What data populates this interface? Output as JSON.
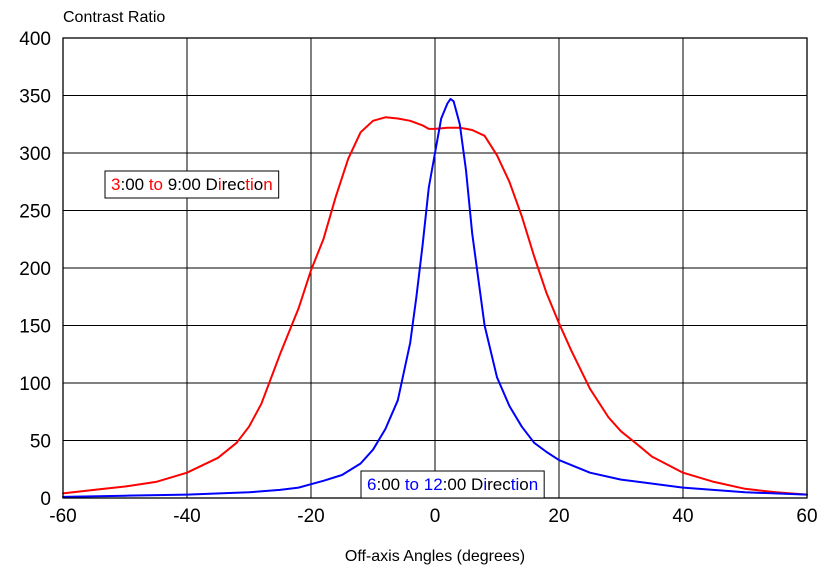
{
  "chart_data": {
    "type": "line",
    "title": "",
    "ylabel": "Contrast Ratio",
    "xlabel": "Off-axis Angles (degrees)",
    "xlim": [
      -60,
      60
    ],
    "ylim": [
      0,
      400
    ],
    "xticks": [
      -60,
      -40,
      -20,
      0,
      20,
      40,
      60
    ],
    "yticks": [
      0,
      50,
      100,
      150,
      200,
      250,
      300,
      350,
      400
    ],
    "grid": true,
    "series": [
      {
        "name": "3:00 to 9:00 Direction",
        "color": "#ff0000",
        "x": [
          -60,
          -55,
          -50,
          -45,
          -40,
          -35,
          -32,
          -30,
          -28,
          -25,
          -22,
          -20,
          -18,
          -16,
          -14,
          -12,
          -10,
          -8,
          -6,
          -4,
          -2,
          -1,
          0,
          2,
          4,
          6,
          8,
          10,
          12,
          14,
          16,
          18,
          20,
          22,
          25,
          28,
          30,
          33,
          35,
          40,
          45,
          50,
          55,
          60
        ],
        "y": [
          4,
          7,
          10,
          14,
          22,
          35,
          48,
          62,
          82,
          125,
          165,
          198,
          225,
          262,
          295,
          318,
          328,
          331,
          330,
          328,
          324,
          321,
          321,
          322,
          322,
          320,
          315,
          298,
          275,
          245,
          210,
          178,
          152,
          128,
          95,
          70,
          58,
          45,
          36,
          22,
          14,
          8,
          5,
          3
        ]
      },
      {
        "name": "6:00 to 12:00 Direction",
        "color": "#0000ff",
        "x": [
          -60,
          -50,
          -40,
          -30,
          -25,
          -22,
          -20,
          -18,
          -15,
          -12,
          -10,
          -8,
          -6,
          -4,
          -3,
          -2,
          -1,
          0,
          1,
          2,
          2.5,
          3,
          4,
          5,
          6,
          8,
          10,
          12,
          14,
          16,
          18,
          20,
          25,
          30,
          40,
          50,
          60
        ],
        "y": [
          1,
          2,
          3,
          5,
          7,
          9,
          12,
          15,
          20,
          30,
          42,
          60,
          85,
          135,
          175,
          220,
          270,
          300,
          330,
          343,
          347,
          345,
          325,
          285,
          230,
          150,
          105,
          80,
          62,
          48,
          40,
          33,
          22,
          16,
          9,
          5,
          3
        ]
      }
    ],
    "annotations": [
      {
        "series": 0,
        "border_color": "#000000",
        "runs": [
          {
            "text": "3",
            "color": "#ff0000"
          },
          {
            "text": ":00 ",
            "color": "#000000"
          },
          {
            "text": "to",
            "color": "#ff0000"
          },
          {
            "text": " 9:00 D",
            "color": "#000000"
          },
          {
            "text": "i",
            "color": "#ff0000"
          },
          {
            "text": "rec",
            "color": "#000000"
          },
          {
            "text": "t",
            "color": "#ff0000"
          },
          {
            "text": "i",
            "color": "#ff0000"
          },
          {
            "text": "o",
            "color": "#000000"
          },
          {
            "text": "n",
            "color": "#ff0000"
          }
        ]
      },
      {
        "series": 1,
        "border_color": "#000000",
        "runs": [
          {
            "text": "6",
            "color": "#0000ff"
          },
          {
            "text": ":00 ",
            "color": "#000000"
          },
          {
            "text": "to",
            "color": "#0000ff"
          },
          {
            "text": " ",
            "color": "#000000"
          },
          {
            "text": "12",
            "color": "#0000ff"
          },
          {
            "text": ":00 D",
            "color": "#000000"
          },
          {
            "text": "i",
            "color": "#0000ff"
          },
          {
            "text": "rec",
            "color": "#000000"
          },
          {
            "text": "t",
            "color": "#0000ff"
          },
          {
            "text": "i",
            "color": "#0000ff"
          },
          {
            "text": "o",
            "color": "#000000"
          },
          {
            "text": "n",
            "color": "#0000ff"
          }
        ]
      }
    ]
  }
}
